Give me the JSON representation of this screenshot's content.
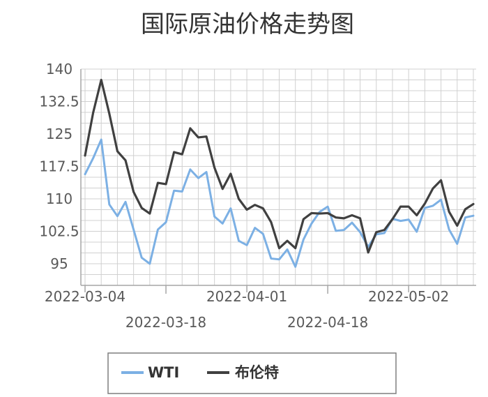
{
  "chart_data": {
    "type": "line",
    "title": "国际原油价格走势图",
    "xlabel": "",
    "ylabel": "",
    "y_ticks": [
      "95",
      "102.5",
      "110",
      "117.5",
      "125",
      "132.5",
      "140"
    ],
    "ylim": [
      90,
      140
    ],
    "grid": true,
    "legend_position": "bottom",
    "x_tick_labels": [
      {
        "label": "2022-03-04",
        "index": 0,
        "row": 1
      },
      {
        "label": "2022-03-18",
        "index": 10,
        "row": 2
      },
      {
        "label": "2022-04-01",
        "index": 20,
        "row": 1
      },
      {
        "label": "2022-04-18",
        "index": 30,
        "row": 2
      },
      {
        "label": "2022-05-02",
        "index": 40,
        "row": 1
      }
    ],
    "point_count": 49,
    "series": [
      {
        "name": "WTI",
        "color": "#7cb0e4",
        "values": [
          115.7,
          119.4,
          123.7,
          108.7,
          106.0,
          109.3,
          102.9,
          96.4,
          95.0,
          102.9,
          104.6,
          111.9,
          111.7,
          116.8,
          114.8,
          116.2,
          105.9,
          104.3,
          107.8,
          100.3,
          99.3,
          103.3,
          101.9,
          96.2,
          96.0,
          98.3,
          94.3,
          100.6,
          104.3,
          107.0,
          108.2,
          102.6,
          102.8,
          104.5,
          102.3,
          98.9,
          101.8,
          102.1,
          105.4,
          104.9,
          105.2,
          102.4,
          107.9,
          108.4,
          109.8,
          102.9,
          99.6,
          105.7,
          106.1
        ]
      },
      {
        "name": "布伦特",
        "color": "#404040",
        "values": [
          120.0,
          129.9,
          137.5,
          129.7,
          121.0,
          118.9,
          111.6,
          107.9,
          106.6,
          113.7,
          113.4,
          120.8,
          120.3,
          126.3,
          124.2,
          124.4,
          117.2,
          112.3,
          115.8,
          110.0,
          107.5,
          108.6,
          107.8,
          104.6,
          98.6,
          100.3,
          98.6,
          105.3,
          106.7,
          106.6,
          106.7,
          105.7,
          105.5,
          106.2,
          105.5,
          97.6,
          102.3,
          102.8,
          105.3,
          108.2,
          108.2,
          106.2,
          108.9,
          112.4,
          114.3,
          107.0,
          103.8,
          107.6,
          108.8
        ]
      }
    ]
  }
}
